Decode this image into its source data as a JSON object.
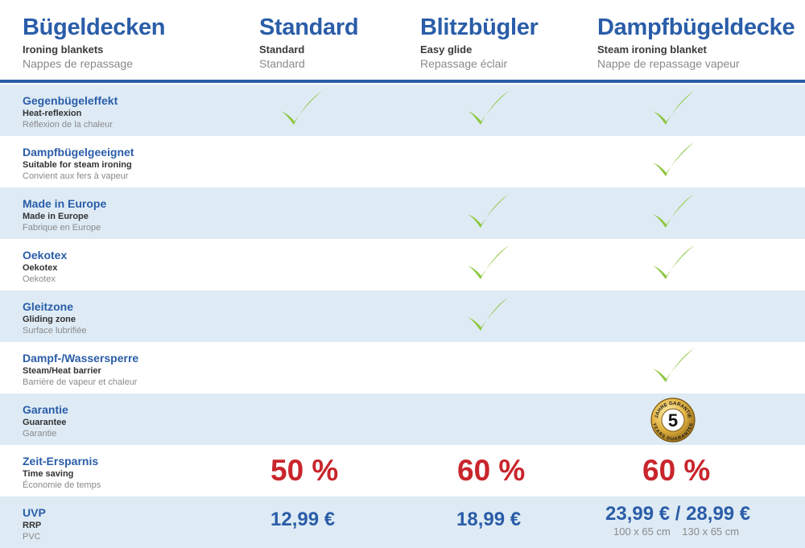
{
  "header": {
    "col0": {
      "de": "Bügeldecken",
      "en": "Ironing blankets",
      "fr": "Nappes de repassage"
    },
    "col1": {
      "de": "Standard",
      "en": "Standard",
      "fr": "Standard"
    },
    "col2": {
      "de": "Blitzbügler",
      "en": "Easy glide",
      "fr": "Repassage éclair"
    },
    "col3": {
      "de": "Dampfbügeldecke",
      "en": "Steam ironing blanket",
      "fr": "Nappe de repassage vapeur"
    }
  },
  "rows": [
    {
      "de": "Gegenbügeleffekt",
      "en": "Heat-reflexion",
      "fr": "Réflexion de la chaleur",
      "standard": true,
      "blitz": true,
      "dampf": true
    },
    {
      "de": "Dampfbügelgeeignet",
      "en": "Suitable for steam ironing",
      "fr": "Convient aux fers à vapeur",
      "standard": false,
      "blitz": false,
      "dampf": true
    },
    {
      "de": "Made in Europe",
      "en": "Made in Europe",
      "fr": "Fabrique en Europe",
      "standard": false,
      "blitz": true,
      "dampf": true
    },
    {
      "de": "Oekotex",
      "en": "Oekotex",
      "fr": "Oekotex",
      "standard": false,
      "blitz": true,
      "dampf": true
    },
    {
      "de": "Gleitzone",
      "en": "Gliding zone",
      "fr": "Surface lubrifiée",
      "standard": false,
      "blitz": true,
      "dampf": false
    },
    {
      "de": "Dampf-/Wassersperre",
      "en": "Steam/Heat barrier",
      "fr": "Barrière de vapeur et chaleur",
      "standard": false,
      "blitz": false,
      "dampf": true
    },
    {
      "de": "Garantie",
      "en": "Guarantee",
      "fr": "Garantie"
    },
    {
      "de": "Zeit-Ersparnis",
      "en": "Time saving",
      "fr": "Économie de temps"
    },
    {
      "de": "UVP",
      "en": "RRP",
      "fr": "PVC"
    }
  ],
  "guarantee_badge": {
    "years": "5",
    "ring_top": "JAHRE GARANTIE",
    "ring_bottom": "YEARS GUARANTEE"
  },
  "time_saving": {
    "standard": "50 %",
    "blitz": "60 %",
    "dampf": "60 %"
  },
  "prices": {
    "standard": "12,99 €",
    "blitz": "18,99 €",
    "dampf": "23,99 € / 28,99 €",
    "dampf_size_1": "100 x 65 cm",
    "dampf_size_2": "130 x 65 cm"
  },
  "colors": {
    "blue": "#2a5da8",
    "red": "#c9252c",
    "check_green": "#8cc63f",
    "row_shade": "#deebf5",
    "gold": "#e2b341"
  }
}
